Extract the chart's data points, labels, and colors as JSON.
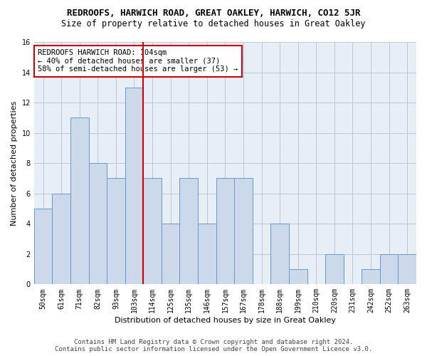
{
  "title": "REDROOFS, HARWICH ROAD, GREAT OAKLEY, HARWICH, CO12 5JR",
  "subtitle": "Size of property relative to detached houses in Great Oakley",
  "xlabel": "Distribution of detached houses by size in Great Oakley",
  "ylabel": "Number of detached properties",
  "categories": [
    "50sqm",
    "61sqm",
    "71sqm",
    "82sqm",
    "93sqm",
    "103sqm",
    "114sqm",
    "125sqm",
    "135sqm",
    "146sqm",
    "157sqm",
    "167sqm",
    "178sqm",
    "188sqm",
    "199sqm",
    "210sqm",
    "220sqm",
    "231sqm",
    "242sqm",
    "252sqm",
    "263sqm"
  ],
  "values": [
    5,
    6,
    11,
    8,
    7,
    13,
    7,
    4,
    7,
    4,
    7,
    7,
    0,
    4,
    1,
    0,
    2,
    0,
    1,
    2,
    2
  ],
  "bar_color": "#ccd9ea",
  "bar_edge_color": "#6699cc",
  "highlight_index": 5,
  "highlight_line_color": "#cc0000",
  "ylim": [
    0,
    16
  ],
  "yticks": [
    0,
    2,
    4,
    6,
    8,
    10,
    12,
    14,
    16
  ],
  "annotation_text": "REDROOFS HARWICH ROAD: 104sqm\n← 40% of detached houses are smaller (37)\n58% of semi-detached houses are larger (53) →",
  "annotation_box_color": "#cc0000",
  "footer_line1": "Contains HM Land Registry data © Crown copyright and database right 2024.",
  "footer_line2": "Contains public sector information licensed under the Open Government Licence v3.0.",
  "background_color": "#ffffff",
  "plot_bg_color": "#e8eef5",
  "grid_color": "#b8c8d8",
  "title_fontsize": 9,
  "subtitle_fontsize": 8.5,
  "axis_label_fontsize": 8,
  "tick_fontsize": 7,
  "annotation_fontsize": 7.5,
  "footer_fontsize": 6.5
}
